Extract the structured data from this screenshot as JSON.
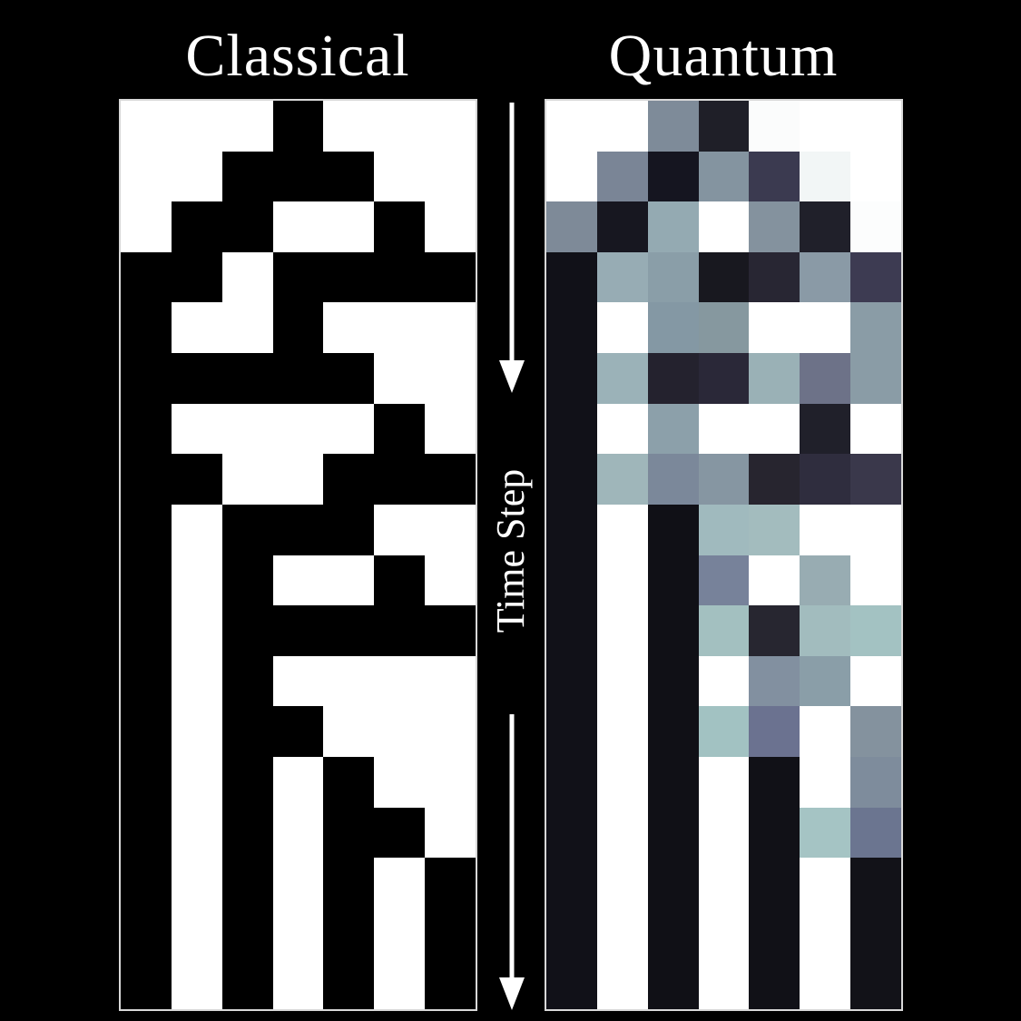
{
  "titles": {
    "classical": "Classical",
    "quantum": "Quantum"
  },
  "axis_label": "Time Step",
  "colors": {
    "background": "#000000",
    "border": "#d8d8d8",
    "arrow": "#ffffff"
  },
  "classical": {
    "columns": 7,
    "rows": 18,
    "cells": [
      [
        0,
        0,
        0,
        1,
        0,
        0,
        0
      ],
      [
        0,
        0,
        1,
        1,
        1,
        0,
        0
      ],
      [
        0,
        1,
        1,
        0,
        0,
        1,
        0
      ],
      [
        1,
        1,
        0,
        1,
        1,
        1,
        1
      ],
      [
        1,
        0,
        0,
        1,
        0,
        0,
        0
      ],
      [
        1,
        1,
        1,
        1,
        1,
        0,
        0
      ],
      [
        1,
        0,
        0,
        0,
        0,
        1,
        0
      ],
      [
        1,
        1,
        0,
        0,
        1,
        1,
        1
      ],
      [
        1,
        0,
        1,
        1,
        1,
        0,
        0
      ],
      [
        1,
        0,
        1,
        0,
        0,
        1,
        0
      ],
      [
        1,
        0,
        1,
        1,
        1,
        1,
        1
      ],
      [
        1,
        0,
        1,
        0,
        0,
        0,
        0
      ],
      [
        1,
        0,
        1,
        1,
        0,
        0,
        0
      ],
      [
        1,
        0,
        1,
        0,
        1,
        0,
        0
      ],
      [
        1,
        0,
        1,
        0,
        1,
        1,
        0
      ],
      [
        1,
        0,
        1,
        0,
        1,
        0,
        1
      ],
      [
        1,
        0,
        1,
        0,
        1,
        0,
        1
      ],
      [
        1,
        0,
        1,
        0,
        1,
        0,
        1
      ]
    ]
  },
  "quantum": {
    "columns": 7,
    "rows": 18,
    "cells": [
      [
        "#ffffff",
        "#ffffff",
        "#7e8b99",
        "#1f1f28",
        "#fbfcfc",
        "#ffffff",
        "#ffffff"
      ],
      [
        "#ffffff",
        "#7a8596",
        "#151520",
        "#8494a0",
        "#3b3a50",
        "#f2f6f6",
        "#ffffff"
      ],
      [
        "#7e8a98",
        "#171720",
        "#94aab2",
        "#ffffff",
        "#84929e",
        "#20202a",
        "#fcfdfd"
      ],
      [
        "#111118",
        "#97acb4",
        "#8a9ea8",
        "#18181f",
        "#282633",
        "#8a9aa6",
        "#3d3b52"
      ],
      [
        "#111118",
        "#ffffff",
        "#8498a4",
        "#86989f",
        "#ffffff",
        "#ffffff",
        "#8a9ca6"
      ],
      [
        "#111118",
        "#9bb2b8",
        "#24222e",
        "#2a2838",
        "#9ab1b6",
        "#6d7288",
        "#8a9ca6"
      ],
      [
        "#111118",
        "#ffffff",
        "#8ca0aa",
        "#ffffff",
        "#ffffff",
        "#20202a",
        "#ffffff"
      ],
      [
        "#111118",
        "#9fb6ba",
        "#7b889a",
        "#8696a2",
        "#27252f",
        "#2f2d3e",
        "#3a384b"
      ],
      [
        "#111118",
        "#ffffff",
        "#101016",
        "#a0babe",
        "#a3bcbe",
        "#ffffff",
        "#ffffff"
      ],
      [
        "#111118",
        "#ffffff",
        "#101016",
        "#77829a",
        "#ffffff",
        "#98acb2",
        "#ffffff"
      ],
      [
        "#111118",
        "#ffffff",
        "#101016",
        "#a3c0c0",
        "#272630",
        "#a2bcbe",
        "#a3c2c2"
      ],
      [
        "#111118",
        "#ffffff",
        "#101016",
        "#ffffff",
        "#8290a0",
        "#8a9ea8",
        "#ffffff"
      ],
      [
        "#111118",
        "#ffffff",
        "#101016",
        "#a2c2c2",
        "#6b7290",
        "#ffffff",
        "#84929e"
      ],
      [
        "#111118",
        "#ffffff",
        "#101016",
        "#ffffff",
        "#111117",
        "#ffffff",
        "#7e8c9c"
      ],
      [
        "#111118",
        "#ffffff",
        "#101016",
        "#ffffff",
        "#111117",
        "#a5c4c4",
        "#6b7590"
      ],
      [
        "#111118",
        "#ffffff",
        "#101016",
        "#ffffff",
        "#111117",
        "#ffffff",
        "#121218"
      ],
      [
        "#111118",
        "#ffffff",
        "#101016",
        "#ffffff",
        "#111117",
        "#ffffff",
        "#121218"
      ],
      [
        "#111118",
        "#ffffff",
        "#101016",
        "#ffffff",
        "#111117",
        "#ffffff",
        "#121218"
      ]
    ]
  }
}
